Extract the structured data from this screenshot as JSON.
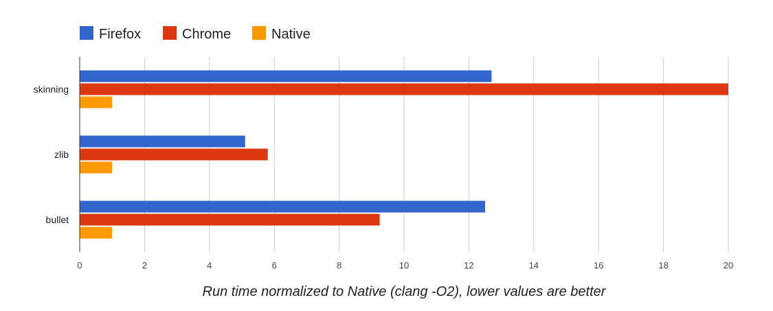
{
  "chart_data": {
    "type": "bar",
    "orientation": "horizontal",
    "categories": [
      "skinning",
      "zlib",
      "bullet"
    ],
    "series": [
      {
        "name": "Firefox",
        "color": "#3366cc",
        "values": [
          12.7,
          5.1,
          12.5
        ]
      },
      {
        "name": "Chrome",
        "color": "#dc3912",
        "values": [
          20.0,
          5.8,
          9.25
        ]
      },
      {
        "name": "Native",
        "color": "#ff9900",
        "values": [
          1.0,
          1.0,
          1.0
        ]
      }
    ],
    "xlabel": "Run time normalized to Native (clang -O2), lower values are better",
    "xlim": [
      0,
      20
    ],
    "xticks": [
      "0",
      "2",
      "4",
      "6",
      "8",
      "10",
      "12",
      "14",
      "16",
      "18",
      "20"
    ],
    "grid": true,
    "legend": "top-left"
  }
}
